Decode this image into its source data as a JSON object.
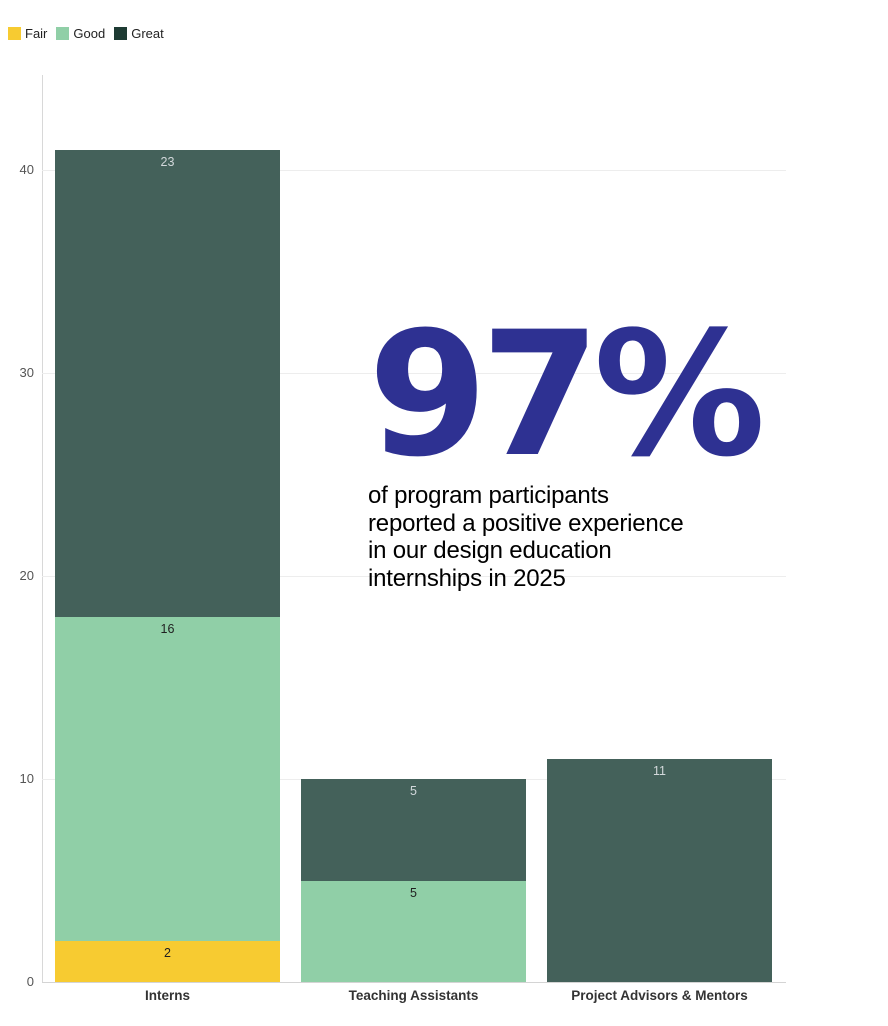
{
  "legend": [
    {
      "label": "Fair",
      "color": "#F7CB31"
    },
    {
      "label": "Good",
      "color": "#90CFA7"
    },
    {
      "label": "Great",
      "color": "#1E3B33"
    }
  ],
  "chart_data": {
    "type": "bar",
    "stacked": true,
    "title": "",
    "xlabel": "",
    "ylabel": "",
    "categories": [
      "Interns",
      "Teaching Assistants",
      "Project Advisors & Mentors"
    ],
    "series": [
      {
        "name": "Fair",
        "color": "#F7CB31",
        "label_color": "#1f1f1f",
        "values": [
          2,
          0,
          0
        ]
      },
      {
        "name": "Good",
        "color": "#90CFA7",
        "label_color": "#1f1f1f",
        "values": [
          16,
          5,
          0
        ]
      },
      {
        "name": "Great",
        "color": "#44615A",
        "label_color": "#d3d8db",
        "values": [
          23,
          5,
          11
        ]
      }
    ],
    "totals": [
      41,
      10,
      11
    ],
    "yticks": [
      0,
      10,
      20,
      30,
      40
    ],
    "ylim": [
      0,
      44.7
    ],
    "grid": true,
    "legend_position": "top-left"
  },
  "annotation": {
    "headline": "97%",
    "headline_color": "#2E3192",
    "lines": [
      "of program participants",
      "reported a positive experience",
      "in our design education",
      "internships in 2025"
    ]
  }
}
